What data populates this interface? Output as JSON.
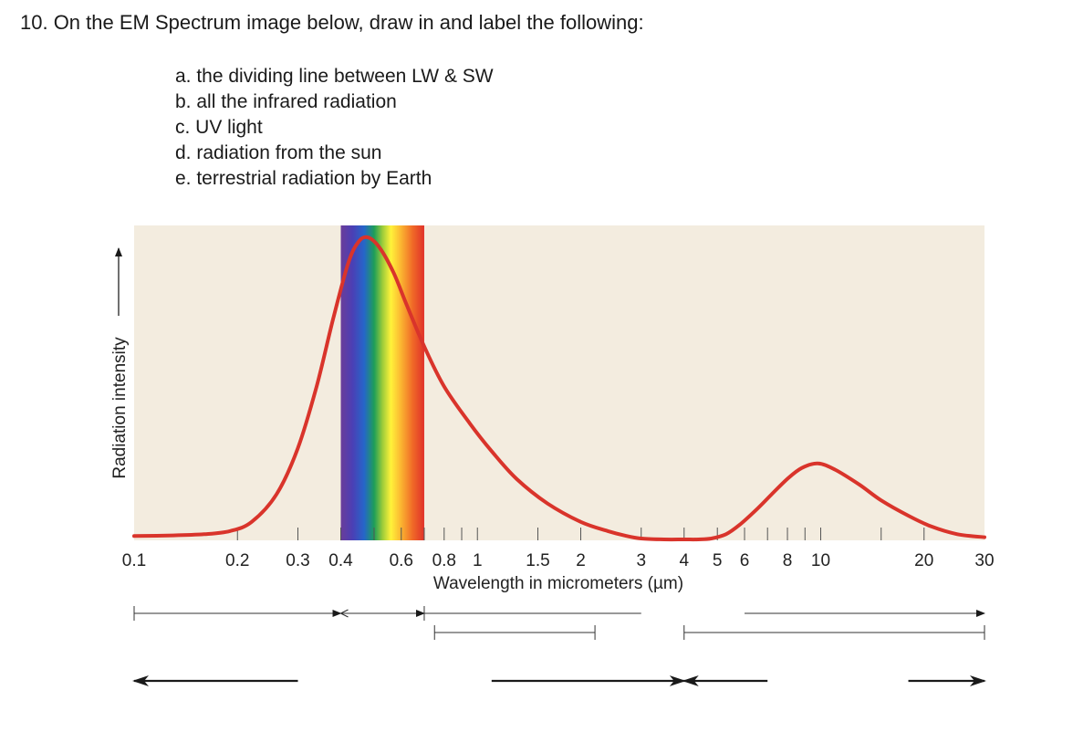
{
  "question": {
    "title": "10. On the EM Spectrum image below, draw in and label the following:",
    "items": [
      "a. the dividing line between LW & SW",
      "b. all the infrared radiation",
      "c. UV light",
      "d. radiation from the sun",
      "e. terrestrial radiation by Earth"
    ]
  },
  "chart_data": {
    "type": "line",
    "title": "",
    "xlabel": "Wavelength in micrometers (µm)",
    "ylabel": "Radiation intensity",
    "xscale": "log",
    "xlim": [
      0.1,
      30
    ],
    "grid": false,
    "legend": "none",
    "x_tick_labels": [
      {
        "label": "0.1",
        "value": 0.1
      },
      {
        "label": "0.2",
        "value": 0.2
      },
      {
        "label": "0.3",
        "value": 0.3
      },
      {
        "label": "0.4",
        "value": 0.4
      },
      {
        "label": "0.6",
        "value": 0.6
      },
      {
        "label": "0.8",
        "value": 0.8
      },
      {
        "label": "1",
        "value": 1
      },
      {
        "label": "1.5",
        "value": 1.5
      },
      {
        "label": "2",
        "value": 2
      },
      {
        "label": "3",
        "value": 3
      },
      {
        "label": "4",
        "value": 4
      },
      {
        "label": "5",
        "value": 5
      },
      {
        "label": "6",
        "value": 6
      },
      {
        "label": "8",
        "value": 8
      },
      {
        "label": "10",
        "value": 10
      },
      {
        "label": "20",
        "value": 20
      },
      {
        "label": "30",
        "value": 30
      }
    ],
    "minor_ticks": [
      0.5,
      0.7,
      0.9,
      7,
      9,
      15
    ],
    "visible_band": [
      0.4,
      0.7
    ],
    "curve_color": "#d9342b",
    "background_color": "#f3ecdf",
    "series": [
      {
        "x": [
          0.1,
          0.13,
          0.16,
          0.19,
          0.22,
          0.26,
          0.3,
          0.34,
          0.38,
          0.42,
          0.45,
          0.48,
          0.52,
          0.57,
          0.62,
          0.7,
          0.8,
          0.95,
          1.1,
          1.3,
          1.6,
          2.0,
          2.4,
          2.7,
          3.0,
          3.5,
          4.0,
          4.4,
          4.8,
          5.3,
          5.8,
          6.5,
          7.2,
          8.0,
          8.8,
          9.8,
          11,
          13,
          15,
          18,
          21,
          25,
          30
        ],
        "y": [
          0.014,
          0.016,
          0.02,
          0.03,
          0.06,
          0.15,
          0.3,
          0.5,
          0.72,
          0.9,
          0.97,
          0.985,
          0.95,
          0.87,
          0.77,
          0.63,
          0.5,
          0.38,
          0.29,
          0.2,
          0.12,
          0.06,
          0.03,
          0.015,
          0.006,
          0.003,
          0.003,
          0.003,
          0.006,
          0.02,
          0.05,
          0.1,
          0.15,
          0.2,
          0.235,
          0.25,
          0.23,
          0.18,
          0.13,
          0.08,
          0.045,
          0.02,
          0.01
        ]
      }
    ],
    "answer_lines": [
      {
        "type": "bracket",
        "row": 1,
        "x": [
          0.1,
          0.4
        ],
        "ends": [
          "bar",
          "arrow"
        ]
      },
      {
        "type": "bracket",
        "row": 1,
        "x": [
          0.4,
          0.7
        ],
        "ends": [
          "arrow",
          "arrow"
        ]
      },
      {
        "type": "bracket",
        "row": 1,
        "x": [
          0.7,
          3.0
        ],
        "ends": [
          "bar",
          "none"
        ]
      },
      {
        "type": "bracket",
        "row": 1,
        "x": [
          6.0,
          30
        ],
        "ends": [
          "none",
          "arrow"
        ]
      },
      {
        "type": "bracket",
        "row": 2,
        "x": [
          0.75,
          2.2
        ],
        "ends": [
          "bar",
          "bar"
        ]
      },
      {
        "type": "bracket",
        "row": 2,
        "x": [
          4.0,
          30
        ],
        "ends": [
          "bar",
          "bar"
        ]
      },
      {
        "type": "arrow",
        "row": 3,
        "x": [
          0.1,
          0.3
        ],
        "dir": "left"
      },
      {
        "type": "arrow",
        "row": 3,
        "x": [
          1.1,
          4.0
        ],
        "dir": "right"
      },
      {
        "type": "arrow",
        "row": 3,
        "x": [
          4.0,
          7.0
        ],
        "dir": "left"
      },
      {
        "type": "arrow",
        "row": 3,
        "x": [
          18,
          30
        ],
        "dir": "right"
      }
    ]
  }
}
